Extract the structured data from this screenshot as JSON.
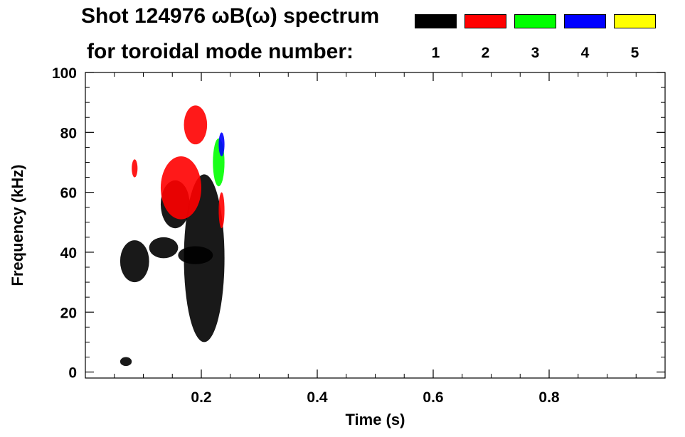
{
  "chart_data": {
    "type": "heatmap",
    "title": "Shot 124976 ωB(ω) spectrum",
    "subtitle": "for toroidal mode number:",
    "xlabel": "Time (s)",
    "ylabel": "Frequency (kHz)",
    "xlim": [
      0.0,
      1.0
    ],
    "ylim": [
      -2,
      100
    ],
    "x_ticks": [
      0.2,
      0.4,
      0.6,
      0.8
    ],
    "x_tick_labels": [
      "0.2",
      "0.4",
      "0.6",
      "0.8"
    ],
    "y_ticks": [
      0,
      20,
      40,
      60,
      80,
      100
    ],
    "y_tick_labels": [
      "0",
      "20",
      "40",
      "60",
      "80",
      "100"
    ],
    "grid": false,
    "legend": {
      "placement": "top-right",
      "entries": [
        {
          "label": "1",
          "color": "#000000"
        },
        {
          "label": "2",
          "color": "#ff0000"
        },
        {
          "label": "3",
          "color": "#00ff00"
        },
        {
          "label": "4",
          "color": "#0000ff"
        },
        {
          "label": "5",
          "color": "#ffff00"
        }
      ]
    },
    "series": [
      {
        "mode": 1,
        "color": "#000000",
        "regions": [
          {
            "t": [
              0.06,
              0.11
            ],
            "f": [
              30,
              44
            ]
          },
          {
            "t": [
              0.11,
              0.16
            ],
            "f": [
              38,
              45
            ]
          },
          {
            "t": [
              0.16,
              0.22
            ],
            "f": [
              36,
              42
            ]
          },
          {
            "t": [
              0.17,
              0.24
            ],
            "f": [
              10,
              66
            ]
          },
          {
            "t": [
              0.13,
              0.18
            ],
            "f": [
              48,
              64
            ]
          },
          {
            "t": [
              0.06,
              0.08
            ],
            "f": [
              2,
              5
            ]
          }
        ]
      },
      {
        "mode": 2,
        "color": "#ff0000",
        "regions": [
          {
            "t": [
              0.13,
              0.2
            ],
            "f": [
              51,
              72
            ]
          },
          {
            "t": [
              0.17,
              0.21
            ],
            "f": [
              76,
              89
            ]
          },
          {
            "t": [
              0.23,
              0.24
            ],
            "f": [
              48,
              60
            ]
          },
          {
            "t": [
              0.08,
              0.09
            ],
            "f": [
              65,
              71
            ]
          }
        ]
      },
      {
        "mode": 3,
        "color": "#00ff00",
        "regions": [
          {
            "t": [
              0.22,
              0.24
            ],
            "f": [
              62,
              78
            ]
          }
        ]
      },
      {
        "mode": 4,
        "color": "#0000ff",
        "regions": [
          {
            "t": [
              0.23,
              0.24
            ],
            "f": [
              72,
              80
            ]
          }
        ]
      }
    ]
  }
}
